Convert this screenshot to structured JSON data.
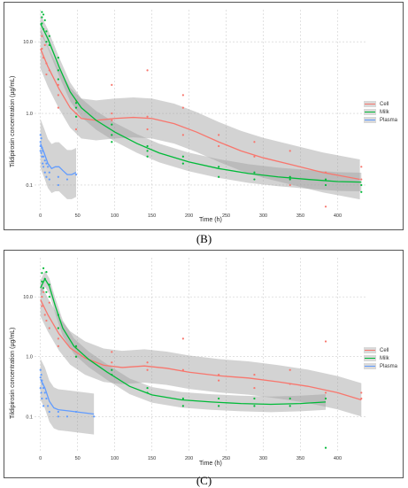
{
  "chart_data": [
    {
      "panel": "(B)",
      "type": "scatter",
      "xlabel": "Time (h)",
      "ylabel": "Tildipirosin concentration (µg/mL)",
      "x_ticks": [
        0,
        50,
        100,
        150,
        200,
        250,
        300,
        350,
        400
      ],
      "y_scale": "log",
      "y_ticks": [
        "0.1",
        "1.0",
        "10.0"
      ],
      "xlim": [
        -8,
        440
      ],
      "ylim": [
        0.045,
        28
      ],
      "grid": true,
      "legend": "right",
      "series": [
        {
          "name": "Cell",
          "color": "#f8766d",
          "points": [
            [
              2,
              12
            ],
            [
              2,
              8
            ],
            [
              4,
              6
            ],
            [
              6,
              9
            ],
            [
              8,
              5
            ],
            [
              8,
              3.5
            ],
            [
              12,
              4
            ],
            [
              24,
              2.5
            ],
            [
              24,
              1.8
            ],
            [
              24,
              1.2
            ],
            [
              48,
              1.5
            ],
            [
              48,
              1.0
            ],
            [
              48,
              0.6
            ],
            [
              96,
              1.0
            ],
            [
              96,
              2.5
            ],
            [
              96,
              0.8
            ],
            [
              144,
              0.9
            ],
            [
              144,
              4.0
            ],
            [
              144,
              0.6
            ],
            [
              192,
              1.8
            ],
            [
              192,
              1.2
            ],
            [
              192,
              0.5
            ],
            [
              240,
              0.5
            ],
            [
              240,
              0.35
            ],
            [
              288,
              0.4
            ],
            [
              288,
              0.25
            ],
            [
              336,
              0.3
            ],
            [
              336,
              0.1
            ],
            [
              384,
              0.15
            ],
            [
              384,
              0.05
            ],
            [
              432,
              0.18
            ],
            [
              432,
              0.12
            ]
          ],
          "fit": [
            [
              0,
              8
            ],
            [
              10,
              4.5
            ],
            [
              25,
              2.2
            ],
            [
              40,
              1.2
            ],
            [
              55,
              0.85
            ],
            [
              75,
              0.8
            ],
            [
              100,
              0.85
            ],
            [
              125,
              0.88
            ],
            [
              150,
              0.85
            ],
            [
              180,
              0.72
            ],
            [
              210,
              0.55
            ],
            [
              240,
              0.4
            ],
            [
              270,
              0.3
            ],
            [
              300,
              0.24
            ],
            [
              340,
              0.19
            ],
            [
              380,
              0.15
            ],
            [
              430,
              0.12
            ]
          ]
        },
        {
          "name": "Milk",
          "color": "#00ba38",
          "points": [
            [
              2,
              26
            ],
            [
              2,
              22
            ],
            [
              2,
              18
            ],
            [
              4,
              24
            ],
            [
              4,
              15
            ],
            [
              6,
              20
            ],
            [
              8,
              14
            ],
            [
              8,
              10
            ],
            [
              12,
              12
            ],
            [
              12,
              9
            ],
            [
              24,
              6
            ],
            [
              24,
              4
            ],
            [
              24,
              3
            ],
            [
              48,
              1.4
            ],
            [
              48,
              1.2
            ],
            [
              48,
              0.9
            ],
            [
              96,
              0.7
            ],
            [
              96,
              0.5
            ],
            [
              96,
              0.4
            ],
            [
              144,
              0.35
            ],
            [
              144,
              0.25
            ],
            [
              144,
              0.3
            ],
            [
              192,
              0.25
            ],
            [
              192,
              0.2
            ],
            [
              240,
              0.18
            ],
            [
              240,
              0.13
            ],
            [
              288,
              0.15
            ],
            [
              288,
              0.12
            ],
            [
              336,
              0.13
            ],
            [
              336,
              0.12
            ],
            [
              384,
              0.12
            ],
            [
              384,
              0.1
            ],
            [
              432,
              0.1
            ],
            [
              432,
              0.08
            ]
          ],
          "fit": [
            [
              0,
              18
            ],
            [
              10,
              11
            ],
            [
              25,
              4.5
            ],
            [
              40,
              2
            ],
            [
              55,
              1.2
            ],
            [
              75,
              0.8
            ],
            [
              100,
              0.55
            ],
            [
              130,
              0.38
            ],
            [
              160,
              0.28
            ],
            [
              200,
              0.21
            ],
            [
              240,
              0.17
            ],
            [
              280,
              0.145
            ],
            [
              320,
              0.13
            ],
            [
              360,
              0.12
            ],
            [
              400,
              0.112
            ],
            [
              432,
              0.11
            ]
          ]
        },
        {
          "name": "Plasma",
          "color": "#619cff",
          "points": [
            [
              0,
              0.5
            ],
            [
              0,
              0.4
            ],
            [
              0,
              0.35
            ],
            [
              0,
              0.3
            ],
            [
              1,
              0.45
            ],
            [
              1,
              0.28
            ],
            [
              2,
              0.33
            ],
            [
              2,
              0.25
            ],
            [
              3,
              0.3
            ],
            [
              3,
              0.2
            ],
            [
              4,
              0.25
            ],
            [
              4,
              0.18
            ],
            [
              6,
              0.22
            ],
            [
              6,
              0.15
            ],
            [
              8,
              0.2
            ],
            [
              8,
              0.13
            ],
            [
              10,
              0.18
            ],
            [
              12,
              0.15
            ],
            [
              12,
              0.12
            ],
            [
              24,
              0.13
            ],
            [
              24,
              0.1
            ],
            [
              36,
              0.12
            ],
            [
              48,
              0.14
            ]
          ],
          "fit": [
            [
              0,
              0.38
            ],
            [
              5,
              0.28
            ],
            [
              10,
              0.2
            ],
            [
              15,
              0.17
            ],
            [
              20,
              0.18
            ],
            [
              25,
              0.18
            ],
            [
              30,
              0.16
            ],
            [
              36,
              0.14
            ],
            [
              42,
              0.14
            ],
            [
              48,
              0.15
            ]
          ]
        }
      ]
    },
    {
      "panel": "(C)",
      "type": "scatter",
      "xlabel": "Time (h)",
      "ylabel": "Tildipirosin concentration (µg/mL)",
      "x_ticks": [
        0,
        50,
        100,
        150,
        200,
        250,
        300,
        350,
        400
      ],
      "y_scale": "log",
      "y_ticks": [
        "0.1",
        "1.0",
        "10.0"
      ],
      "xlim": [
        -8,
        440
      ],
      "ylim": [
        0.025,
        45
      ],
      "grid": true,
      "legend": "right",
      "series": [
        {
          "name": "Cell",
          "color": "#f8766d",
          "points": [
            [
              2,
              10
            ],
            [
              2,
              7
            ],
            [
              4,
              12
            ],
            [
              6,
              5
            ],
            [
              8,
              4
            ],
            [
              12,
              8
            ],
            [
              12,
              3
            ],
            [
              24,
              3
            ],
            [
              24,
              2
            ],
            [
              24,
              1.5
            ],
            [
              48,
              1.4
            ],
            [
              48,
              1.0
            ],
            [
              96,
              1.2
            ],
            [
              96,
              0.8
            ],
            [
              144,
              0.8
            ],
            [
              144,
              0.6
            ],
            [
              192,
              2.0
            ],
            [
              192,
              0.6
            ],
            [
              240,
              0.5
            ],
            [
              240,
              0.4
            ],
            [
              288,
              0.5
            ],
            [
              288,
              0.3
            ],
            [
              336,
              0.6
            ],
            [
              336,
              0.35
            ],
            [
              384,
              1.8
            ],
            [
              384,
              0.25
            ],
            [
              432,
              0.25
            ],
            [
              432,
              0.2
            ]
          ],
          "fit": [
            [
              0,
              9
            ],
            [
              10,
              5
            ],
            [
              25,
              2.4
            ],
            [
              40,
              1.4
            ],
            [
              60,
              0.95
            ],
            [
              85,
              0.72
            ],
            [
              110,
              0.66
            ],
            [
              140,
              0.7
            ],
            [
              170,
              0.64
            ],
            [
              200,
              0.55
            ],
            [
              240,
              0.48
            ],
            [
              280,
              0.44
            ],
            [
              320,
              0.38
            ],
            [
              360,
              0.32
            ],
            [
              400,
              0.25
            ],
            [
              432,
              0.19
            ]
          ]
        },
        {
          "name": "Milk",
          "color": "#00ba38",
          "points": [
            [
              2,
              25
            ],
            [
              2,
              18
            ],
            [
              4,
              30
            ],
            [
              4,
              14
            ],
            [
              6,
              20
            ],
            [
              8,
              26
            ],
            [
              8,
              12
            ],
            [
              12,
              16
            ],
            [
              12,
              10
            ],
            [
              24,
              5
            ],
            [
              24,
              3
            ],
            [
              48,
              1.5
            ],
            [
              48,
              1.0
            ],
            [
              96,
              0.6
            ],
            [
              96,
              0.5
            ],
            [
              144,
              0.3
            ],
            [
              144,
              0.25
            ],
            [
              192,
              0.2
            ],
            [
              192,
              0.15
            ],
            [
              240,
              0.2
            ],
            [
              240,
              0.15
            ],
            [
              288,
              0.2
            ],
            [
              288,
              0.15
            ],
            [
              336,
              0.2
            ],
            [
              336,
              0.15
            ],
            [
              384,
              0.2
            ],
            [
              384,
              0.03
            ]
          ],
          "fit": [
            [
              0,
              14
            ],
            [
              6,
              20
            ],
            [
              12,
              15
            ],
            [
              20,
              7
            ],
            [
              30,
              3
            ],
            [
              45,
              1.5
            ],
            [
              65,
              0.9
            ],
            [
              90,
              0.55
            ],
            [
              120,
              0.32
            ],
            [
              150,
              0.23
            ],
            [
              190,
              0.19
            ],
            [
              230,
              0.175
            ],
            [
              270,
              0.165
            ],
            [
              310,
              0.16
            ],
            [
              350,
              0.165
            ],
            [
              384,
              0.175
            ]
          ]
        },
        {
          "name": "Plasma",
          "color": "#619cff",
          "points": [
            [
              0,
              0.6
            ],
            [
              0,
              0.45
            ],
            [
              0,
              0.3
            ],
            [
              1,
              0.5
            ],
            [
              1,
              0.25
            ],
            [
              2,
              0.4
            ],
            [
              2,
              0.2
            ],
            [
              3,
              0.35
            ],
            [
              4,
              0.3
            ],
            [
              4,
              0.15
            ],
            [
              6,
              0.25
            ],
            [
              8,
              0.2
            ],
            [
              10,
              0.15
            ],
            [
              12,
              0.12
            ],
            [
              24,
              0.12
            ],
            [
              24,
              0.1
            ],
            [
              36,
              0.1
            ],
            [
              48,
              0.12
            ],
            [
              72,
              0.1
            ]
          ],
          "fit": [
            [
              0,
              0.42
            ],
            [
              6,
              0.3
            ],
            [
              12,
              0.18
            ],
            [
              18,
              0.14
            ],
            [
              24,
              0.13
            ],
            [
              36,
              0.125
            ],
            [
              48,
              0.12
            ],
            [
              60,
              0.115
            ],
            [
              72,
              0.11
            ]
          ]
        }
      ]
    }
  ],
  "panel_letters": {
    "b": "(B)",
    "c": "(C)"
  },
  "legend_items": [
    {
      "label": "Cell",
      "color": "#f8766d"
    },
    {
      "label": "Milk",
      "color": "#00ba38"
    },
    {
      "label": "Plasma",
      "color": "#619cff"
    }
  ]
}
